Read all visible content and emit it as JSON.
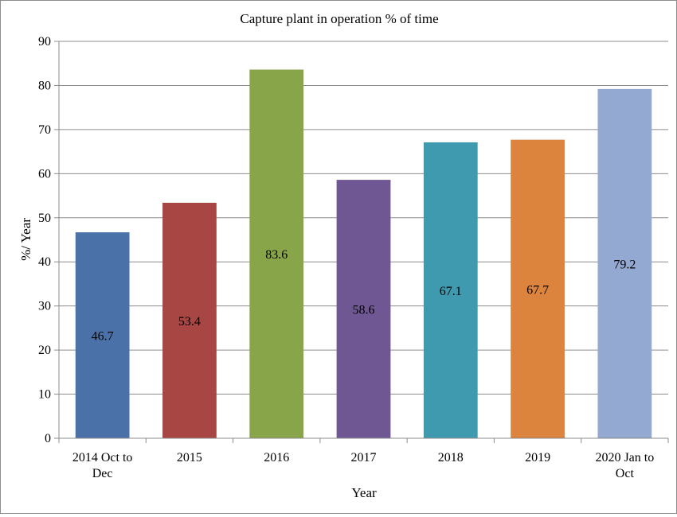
{
  "chart_data": {
    "type": "bar",
    "title": "Capture  plant  in operation  % of time",
    "xlabel": "Year",
    "ylabel": "%/ Year",
    "ylim": [
      0,
      90
    ],
    "yticks": [
      0,
      10,
      20,
      30,
      40,
      50,
      60,
      70,
      80,
      90
    ],
    "categories": [
      [
        "2014 Oct to",
        "Dec"
      ],
      [
        "2015"
      ],
      [
        "2016"
      ],
      [
        "2017"
      ],
      [
        "2018"
      ],
      [
        "2019"
      ],
      [
        "2020 Jan to",
        "Oct"
      ]
    ],
    "values": [
      46.7,
      53.4,
      83.6,
      58.6,
      67.1,
      67.7,
      79.2
    ],
    "data_labels": [
      "46.7",
      "53.4",
      "83.6",
      "58.6",
      "67.1",
      "67.7",
      "79.2"
    ],
    "colors": [
      "#4a72a8",
      "#a84644",
      "#88a54a",
      "#6f5793",
      "#3f9ab0",
      "#dc843d",
      "#94a9d2"
    ],
    "grid": true,
    "legend": "none"
  }
}
